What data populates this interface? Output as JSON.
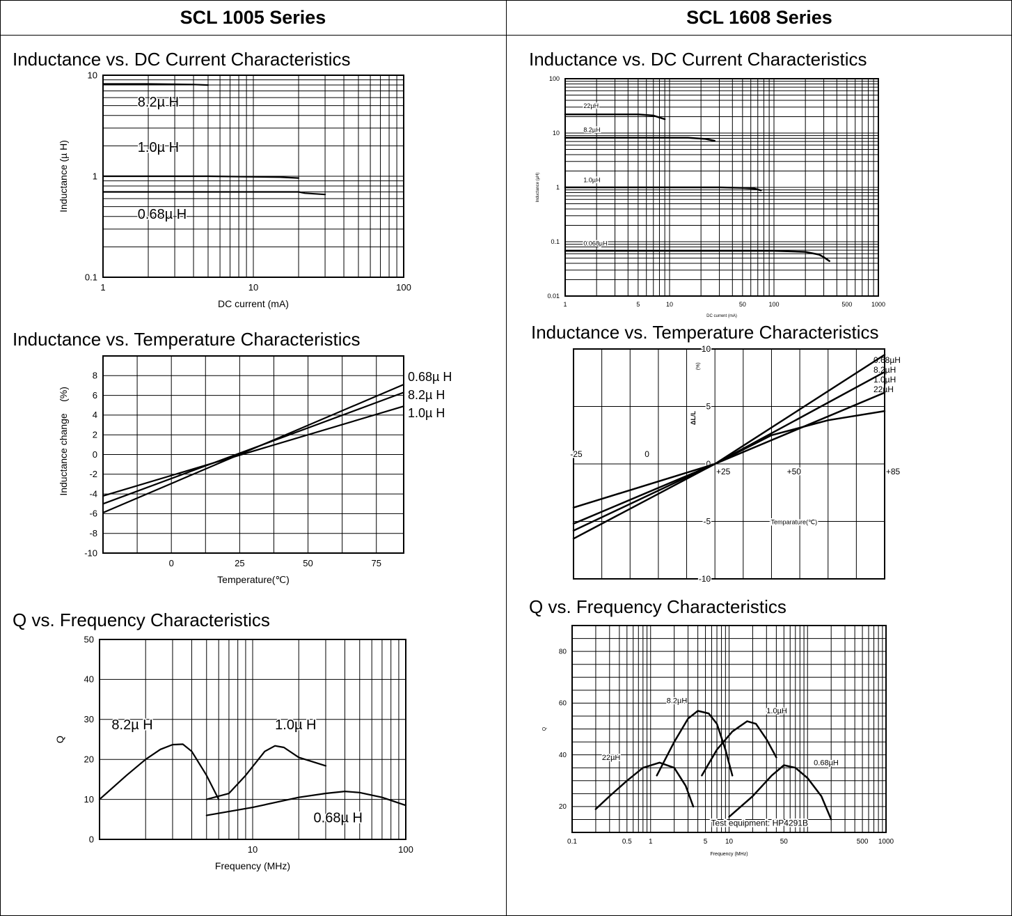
{
  "columns": [
    {
      "header": "SCL 1005 Series"
    },
    {
      "header": "SCL 1608 Series"
    }
  ],
  "sections": {
    "left": [
      "Inductance vs. DC Current Characteristics",
      "Inductance vs. Temperature Characteristics",
      "Q vs. Frequency Characteristics"
    ],
    "right": [
      "Inductance vs. DC Current Characteristics",
      "Inductance vs. Temperature Characteristics",
      "Q vs. Frequency Characteristics"
    ]
  },
  "chart_data": [
    {
      "id": "scl1005-l-vs-dc",
      "type": "line",
      "title": "Inductance vs. DC Current Characteristics",
      "xlabel": "DC current (mA)",
      "ylabel": "Inductance (µ H)",
      "xscale": "log",
      "yscale": "log",
      "xlim": [
        1,
        100
      ],
      "ylim": [
        0.1,
        10
      ],
      "xticks": [
        {
          "v": 1,
          "t": "1"
        },
        {
          "v": 10,
          "t": "10"
        },
        {
          "v": 100,
          "t": "100"
        }
      ],
      "yticks": [
        {
          "v": 10,
          "t": "10"
        },
        {
          "v": 1,
          "t": "1"
        },
        {
          "v": 0.1,
          "t": "0.1"
        }
      ],
      "grid": true,
      "series": [
        {
          "name": "8.2µ H",
          "points": [
            [
              1,
              8.2
            ],
            [
              2,
              8.2
            ],
            [
              4,
              8.1
            ],
            [
              5,
              8.0
            ]
          ],
          "label_at": [
            1.7,
            4.9
          ]
        },
        {
          "name": "1.0µ H",
          "points": [
            [
              1,
              1.0
            ],
            [
              5,
              1.0
            ],
            [
              15,
              0.98
            ],
            [
              20,
              0.96
            ]
          ],
          "label_at": [
            1.7,
            1.75
          ]
        },
        {
          "name": "0.68µ H",
          "points": [
            [
              1,
              0.7
            ],
            [
              10,
              0.7
            ],
            [
              20,
              0.7
            ],
            [
              22,
              0.68
            ],
            [
              30,
              0.66
            ]
          ],
          "label_at": [
            1.7,
            0.38
          ]
        }
      ]
    },
    {
      "id": "scl1605-l-vs-temp",
      "type": "line",
      "title": "Inductance vs. Temperature Characteristics",
      "xlabel": "Temperature(℃)",
      "ylabel": "Inductance change",
      "yunit": "(%)",
      "xlim": [
        -25,
        85
      ],
      "ylim": [
        -10,
        10
      ],
      "xticks": [
        {
          "v": 0,
          "t": "0"
        },
        {
          "v": 25,
          "t": "25"
        },
        {
          "v": 50,
          "t": "50"
        },
        {
          "v": 75,
          "t": "75"
        }
      ],
      "yticks": [
        {
          "v": 8,
          "t": "8"
        },
        {
          "v": 6,
          "t": "6"
        },
        {
          "v": 4,
          "t": "4"
        },
        {
          "v": 2,
          "t": "2"
        },
        {
          "v": 0,
          "t": "0"
        },
        {
          "v": -2,
          "t": "-2"
        },
        {
          "v": -4,
          "t": "-4"
        },
        {
          "v": -6,
          "t": "-6"
        },
        {
          "v": -8,
          "t": "-8"
        },
        {
          "v": -10,
          "t": "-10"
        }
      ],
      "grid": true,
      "series": [
        {
          "name": "0.68µ H",
          "points": [
            [
              -25,
              -5.9
            ],
            [
              85,
              7.1
            ]
          ]
        },
        {
          "name": "8.2µ H",
          "points": [
            [
              -25,
              -5.0
            ],
            [
              85,
              6.3
            ]
          ]
        },
        {
          "name": "1.0µ H",
          "points": [
            [
              -25,
              -4.2
            ],
            [
              85,
              4.9
            ]
          ]
        }
      ]
    },
    {
      "id": "scl1005-q-vs-freq",
      "type": "line",
      "title": "Q vs. Frequency Characteristics",
      "xlabel": "Frequency (MHz)",
      "ylabel": "Q",
      "xscale": "log",
      "xlim": [
        1,
        100
      ],
      "ylim": [
        0,
        50
      ],
      "xticks": [
        {
          "v": 10,
          "t": "10"
        },
        {
          "v": 100,
          "t": "100"
        }
      ],
      "yticks": [
        {
          "v": 50,
          "t": "50"
        },
        {
          "v": 40,
          "t": "40"
        },
        {
          "v": 30,
          "t": "30"
        },
        {
          "v": 20,
          "t": "20"
        },
        {
          "v": 10,
          "t": "10"
        },
        {
          "v": 0,
          "t": "0"
        }
      ],
      "grid": true,
      "series": [
        {
          "name": "8.2µ H",
          "points": [
            [
              1,
              10
            ],
            [
              1.5,
              16
            ],
            [
              2,
              20
            ],
            [
              2.5,
              22.5
            ],
            [
              3,
              23.7
            ],
            [
              3.5,
              23.8
            ],
            [
              4,
              22
            ],
            [
              5,
              16
            ],
            [
              6,
              10
            ]
          ],
          "label_at": [
            1.2,
            27.5
          ]
        },
        {
          "name": "1.0µ H",
          "points": [
            [
              5,
              10
            ],
            [
              7,
              11.5
            ],
            [
              9,
              16
            ],
            [
              12,
              22
            ],
            [
              14,
              23.4
            ],
            [
              16,
              23
            ],
            [
              20,
              20.5
            ],
            [
              30,
              18.4
            ]
          ],
          "label_at": [
            14,
            27.5
          ]
        },
        {
          "name": "0.68µ H",
          "points": [
            [
              5,
              6
            ],
            [
              10,
              8
            ],
            [
              20,
              10.5
            ],
            [
              30,
              11.5
            ],
            [
              40,
              12
            ],
            [
              50,
              11.7
            ],
            [
              70,
              10.5
            ],
            [
              100,
              8.5
            ]
          ],
          "label_at": [
            25,
            4.3
          ]
        }
      ]
    },
    {
      "id": "scl1608-l-vs-dc",
      "type": "line",
      "title": "Inductance vs. DC Current Characteristics",
      "xlabel": "DC current (mA)",
      "ylabel": "Inductance (µH)",
      "xscale": "log",
      "yscale": "log",
      "xlim": [
        1,
        1000
      ],
      "ylim": [
        0.01,
        100
      ],
      "xticks": [
        {
          "v": 1,
          "t": "1"
        },
        {
          "v": 5,
          "t": "5"
        },
        {
          "v": 10,
          "t": "10"
        },
        {
          "v": 50,
          "t": "50"
        },
        {
          "v": 100,
          "t": "100"
        },
        {
          "v": 500,
          "t": "500"
        },
        {
          "v": 1000,
          "t": "1000"
        }
      ],
      "yticks": [
        {
          "v": 100,
          "t": "100"
        },
        {
          "v": 10,
          "t": "10"
        },
        {
          "v": 1,
          "t": "1"
        },
        {
          "v": 0.1,
          "t": "0.1"
        },
        {
          "v": 0.01,
          "t": "0.01"
        }
      ],
      "grid": true,
      "series": [
        {
          "name": "22µH",
          "points": [
            [
              1,
              22
            ],
            [
              5,
              22
            ],
            [
              7,
              21
            ],
            [
              9,
              18
            ]
          ],
          "label_at": [
            1.5,
            29
          ]
        },
        {
          "name": "8.2µH",
          "points": [
            [
              1,
              8.2
            ],
            [
              15,
              8.2
            ],
            [
              22,
              7.8
            ],
            [
              27,
              7.2
            ]
          ],
          "label_at": [
            1.5,
            10.5
          ]
        },
        {
          "name": "1.0µH",
          "points": [
            [
              1,
              1.0
            ],
            [
              30,
              1.0
            ],
            [
              50,
              0.98
            ],
            [
              65,
              0.95
            ],
            [
              75,
              0.88
            ]
          ],
          "label_at": [
            1.5,
            1.25
          ]
        },
        {
          "name": "0.068µH",
          "points": [
            [
              1,
              0.068
            ],
            [
              100,
              0.068
            ],
            [
              200,
              0.065
            ],
            [
              270,
              0.058
            ],
            [
              300,
              0.052
            ],
            [
              340,
              0.044
            ]
          ],
          "label_at": [
            1.5,
            0.085
          ]
        }
      ]
    },
    {
      "id": "scl1608-l-vs-temp",
      "type": "line",
      "title": "Inductance vs. Temperature Characteristics",
      "xlabel": "Temparature(℃)",
      "ylabel": "ΔL/L",
      "yunit": "(%)",
      "xlim": [
        -25,
        85
      ],
      "ylim": [
        -10,
        10
      ],
      "xticks_above": [
        {
          "v": -25,
          "t": "-25"
        },
        {
          "v": 0,
          "t": "0"
        }
      ],
      "xticks_below": [
        {
          "v": 25,
          "t": "+25"
        },
        {
          "v": 50,
          "t": "+50"
        },
        {
          "v": 85,
          "t": "+85"
        }
      ],
      "yticks": [
        {
          "v": 10,
          "t": "10"
        },
        {
          "v": 5,
          "t": "5"
        },
        {
          "v": 0,
          "t": "0"
        },
        {
          "v": -5,
          "t": "-5"
        },
        {
          "v": -10,
          "t": "-10"
        }
      ],
      "grid": true,
      "series": [
        {
          "name": "0.68µH",
          "points": [
            [
              -25,
              -6.5
            ],
            [
              25,
              0
            ],
            [
              85,
              9.5
            ]
          ]
        },
        {
          "name": "8.2µH",
          "points": [
            [
              -25,
              -5.8
            ],
            [
              25,
              0
            ],
            [
              85,
              8.0
            ]
          ]
        },
        {
          "name": "1.0µH",
          "points": [
            [
              -25,
              -5.2
            ],
            [
              25,
              0
            ],
            [
              85,
              6.2
            ]
          ]
        },
        {
          "name": "22µH",
          "points": [
            [
              -25,
              -3.8
            ],
            [
              25,
              0
            ],
            [
              45,
              2.5
            ],
            [
              65,
              3.8
            ],
            [
              85,
              4.6
            ]
          ]
        }
      ]
    },
    {
      "id": "scl1608-q-vs-freq",
      "type": "line",
      "title": "Q vs. Frequency Characteristics",
      "xlabel": "Frequency (MHz)",
      "ylabel": "Q",
      "annotation": "Test equipment: HP4291B",
      "xscale": "log",
      "xlim": [
        0.1,
        1000
      ],
      "ylim": [
        10,
        90
      ],
      "xticks": [
        {
          "v": 0.1,
          "t": "0.1"
        },
        {
          "v": 0.5,
          "t": "0.5"
        },
        {
          "v": 1,
          "t": "1"
        },
        {
          "v": 5,
          "t": "5"
        },
        {
          "v": 10,
          "t": "10"
        },
        {
          "v": 50,
          "t": "50"
        },
        {
          "v": 500,
          "t": "500"
        },
        {
          "v": 1000,
          "t": "1000"
        }
      ],
      "yticks": [
        {
          "v": 80,
          "t": "80"
        },
        {
          "v": 60,
          "t": "60"
        },
        {
          "v": 40,
          "t": "40"
        },
        {
          "v": 20,
          "t": "20"
        }
      ],
      "grid": true,
      "series": [
        {
          "name": "22µH",
          "points": [
            [
              0.2,
              19
            ],
            [
              0.3,
              24
            ],
            [
              0.5,
              30
            ],
            [
              0.8,
              35
            ],
            [
              1.3,
              37
            ],
            [
              2,
              35
            ],
            [
              2.8,
              28
            ],
            [
              3.5,
              20
            ]
          ],
          "label_at": [
            0.24,
            38
          ]
        },
        {
          "name": "8.2µH",
          "points": [
            [
              1.2,
              32
            ],
            [
              2,
              45
            ],
            [
              3,
              54
            ],
            [
              4,
              57
            ],
            [
              5.5,
              56
            ],
            [
              7,
              52
            ],
            [
              9,
              42
            ],
            [
              11,
              32
            ]
          ],
          "label_at": [
            1.6,
            60
          ]
        },
        {
          "name": "1.0µH",
          "points": [
            [
              4.5,
              32
            ],
            [
              7,
              42
            ],
            [
              11,
              49
            ],
            [
              17,
              53
            ],
            [
              22,
              52
            ],
            [
              30,
              46
            ],
            [
              40,
              39
            ]
          ],
          "label_at": [
            30,
            56
          ]
        },
        {
          "name": "0.68µH",
          "points": [
            [
              10,
              16
            ],
            [
              20,
              24
            ],
            [
              35,
              32
            ],
            [
              50,
              36
            ],
            [
              70,
              35
            ],
            [
              100,
              31
            ],
            [
              150,
              24
            ],
            [
              200,
              15
            ]
          ],
          "label_at": [
            120,
            36
          ]
        }
      ]
    }
  ]
}
